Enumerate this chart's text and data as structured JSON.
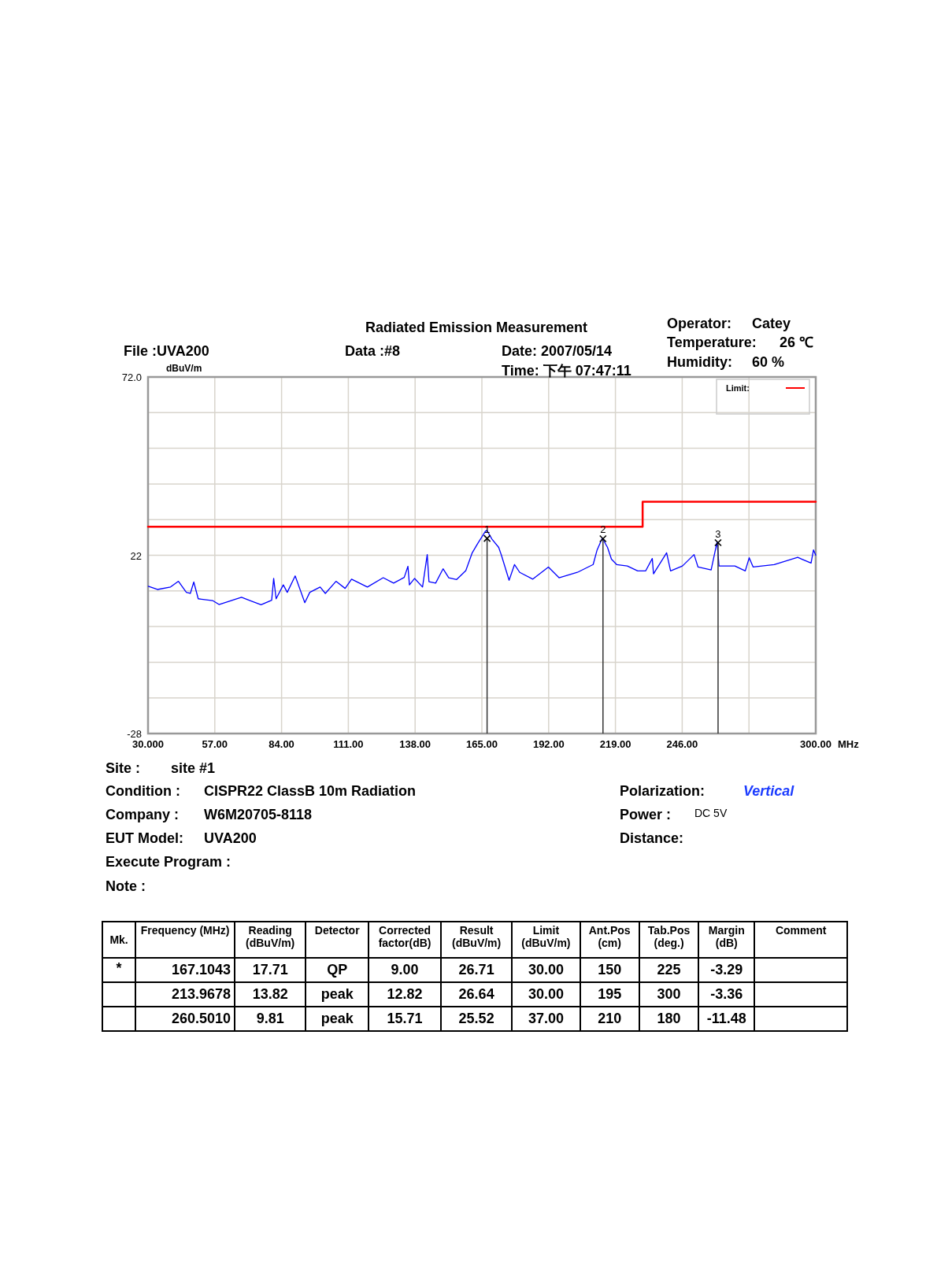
{
  "chart_data": [
    {
      "type": "line",
      "title": "Radiated Emission Measurement",
      "xlabel": "MHz",
      "ylabel": "dBuV/m",
      "xlim": [
        30,
        300
      ],
      "ylim": [
        -28,
        72
      ],
      "xticks": [
        {
          "value": 30,
          "label": "30.000"
        },
        {
          "value": 57,
          "label": "57.00"
        },
        {
          "value": 84,
          "label": "84.00"
        },
        {
          "value": 111,
          "label": "111.00"
        },
        {
          "value": 138,
          "label": "138.00"
        },
        {
          "value": 165,
          "label": "165.00"
        },
        {
          "value": 192,
          "label": "192.00"
        },
        {
          "value": 219,
          "label": "219.00"
        },
        {
          "value": 246,
          "label": "246.00"
        },
        {
          "value": 273,
          "label": null
        },
        {
          "value": 300,
          "label": "300.00"
        }
      ],
      "yticks": [
        -28,
        {
          "value": -18,
          "label": null
        },
        {
          "value": -8,
          "label": null
        },
        {
          "value": 2,
          "label": null
        },
        {
          "value": 12,
          "label": null
        },
        22,
        {
          "value": 32,
          "label": null
        },
        {
          "value": 42,
          "label": null
        },
        {
          "value": 52,
          "label": null
        },
        {
          "value": 62,
          "label": null
        },
        {
          "value": 72,
          "label": "72.0"
        }
      ],
      "grid": true,
      "legend": "top right",
      "series": [
        {
          "color": "#0000ff",
          "x": [
            30.1,
            33.8,
            39.1,
            42.3,
            45.5,
            47.1,
            48.5,
            50.3,
            56.1,
            58.7,
            67.8,
            75.7,
            80.0,
            80.8,
            81.8,
            84.7,
            86.3,
            89.5,
            93.4,
            95.4,
            99.6,
            101.7,
            106.0,
            109.7,
            112.3,
            118.7,
            125.1,
            129.3,
            133.6,
            135.1,
            135.7,
            137.8,
            141.0,
            142.9,
            143.6,
            146.3,
            149.3,
            151.6,
            154.8,
            158.5,
            161.1,
            163.3,
            166.4,
            167.0,
            169.1,
            171.8,
            172.9,
            176.0,
            178.2,
            180.3,
            185.6,
            191.9,
            196.2,
            203.6,
            210.0,
            211.6,
            213.7,
            215.8,
            217.4,
            219.5,
            223.8,
            228.0,
            231.2,
            233.9,
            234.4,
            239.7,
            241.3,
            246.1,
            250.8,
            252.4,
            257.7,
            260.1,
            260.9,
            267.3,
            271.5,
            273.1,
            274.7,
            283.2,
            292.7,
            298.1,
            299.1,
            300.0
          ],
          "values": [
            13.3,
            12.4,
            13.1,
            14.7,
            11.6,
            11.3,
            14.5,
            9.8,
            9.3,
            8.2,
            10.2,
            8.1,
            9.4,
            15.5,
            9.8,
            13.7,
            11.6,
            16.2,
            8.7,
            11.6,
            13.1,
            11.3,
            14.7,
            12.7,
            15.3,
            13.1,
            15.7,
            14.2,
            15.8,
            18.9,
            13.7,
            15.5,
            13.1,
            22.2,
            14.6,
            14.2,
            18.2,
            15.7,
            15.2,
            17.7,
            22.7,
            25.3,
            28.7,
            29.0,
            26.5,
            24.2,
            22.0,
            15.0,
            19.4,
            17.2,
            15.3,
            18.7,
            15.7,
            17.2,
            19.4,
            23.5,
            26.8,
            24.2,
            20.9,
            19.4,
            19.0,
            17.6,
            17.6,
            21.1,
            16.8,
            22.7,
            17.6,
            19.0,
            22.2,
            18.7,
            17.9,
            25.7,
            19.0,
            19.0,
            17.6,
            21.3,
            18.7,
            19.4,
            21.4,
            19.8,
            23.5,
            22.0
          ]
        },
        {
          "name": "Limit:",
          "type": "step",
          "color": "#ff0000",
          "x": [
            30,
            230,
            300
          ],
          "values": [
            30,
            37,
            37
          ]
        }
      ],
      "annotations": [
        "File :UVA200",
        "Data :#8",
        "Date: 2007/05/14",
        "Time: 下午 07:47:11",
        "Operator:",
        "Catey",
        "Temperature:",
        "26 ℃",
        "Humidity:",
        "60 %",
        {
          "text": "1",
          "x": 167.1043,
          "y": 26.71
        },
        {
          "text": "2",
          "x": 213.9678,
          "y": 26.64
        },
        {
          "text": "3",
          "x": 260.501,
          "y": 25.52
        }
      ]
    },
    {
      "type": "other",
      "annotations": [
        "Site :",
        "site #1",
        "Condition :",
        "CISPR22 ClassB 10m Radiation",
        "Company :",
        "W6M20705-8118",
        "EUT Model:",
        "UVA200",
        "Execute Program :",
        "Note :",
        "Polarization:",
        "Vertical",
        "Power :",
        "DC 5V",
        "Distance:"
      ]
    },
    {
      "type": "other",
      "categories": [
        "Mk.",
        "Frequency (MHz)",
        "Reading (dBuV/m)",
        "Detector",
        "Corrected factor(dB)",
        "Result (dBuV/m)",
        "Limit (dBuV/m)",
        "Ant.Pos (cm)",
        "Tab.Pos (deg.)",
        "Margin (dB)",
        "Comment"
      ],
      "annotations": [
        "*",
        "167.1043",
        "17.71",
        "QP",
        "9.00",
        "26.71",
        "30.00",
        "150",
        "225",
        "-3.29",
        null,
        null,
        "213.9678",
        "13.82",
        "peak",
        "12.82",
        "26.64",
        "30.00",
        "195",
        "300",
        "-3.36",
        null,
        null,
        "260.5010",
        "9.81",
        "peak",
        "15.71",
        "25.52",
        "37.00",
        "210",
        "180",
        "-11.48",
        null
      ]
    }
  ]
}
